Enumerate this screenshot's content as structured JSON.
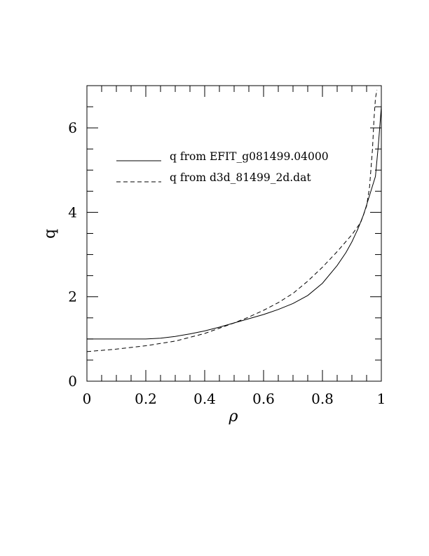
{
  "chart_data": {
    "type": "line",
    "xlabel": "ρ",
    "ylabel": "q",
    "xlim": [
      0,
      1
    ],
    "ylim": [
      0,
      7
    ],
    "x_ticks": [
      0,
      0.2,
      0.4,
      0.6,
      0.8,
      1
    ],
    "x_tick_labels": [
      "0",
      "0.2",
      "0.4",
      "0.6",
      "0.8",
      "1"
    ],
    "y_ticks": [
      0,
      2,
      4,
      6
    ],
    "y_tick_labels": [
      "0",
      "2",
      "4",
      "6"
    ],
    "grid": false,
    "legend_position": "upper-left",
    "series": [
      {
        "name": "q from EFIT_g081499.04000",
        "style": "solid",
        "x": [
          0,
          0.1,
          0.2,
          0.25,
          0.3,
          0.35,
          0.4,
          0.45,
          0.5,
          0.55,
          0.6,
          0.65,
          0.7,
          0.75,
          0.8,
          0.85,
          0.88,
          0.9,
          0.92,
          0.94,
          0.96,
          0.98,
          0.99,
          1.0
        ],
        "y": [
          1.0,
          1.0,
          1.0,
          1.02,
          1.06,
          1.12,
          1.19,
          1.28,
          1.38,
          1.48,
          1.58,
          1.7,
          1.84,
          2.03,
          2.32,
          2.74,
          3.05,
          3.3,
          3.6,
          3.95,
          4.4,
          4.85,
          5.6,
          6.5
        ]
      },
      {
        "name": "q from d3d_81499_2d.dat",
        "style": "dashed",
        "x": [
          0,
          0.1,
          0.2,
          0.3,
          0.4,
          0.5,
          0.55,
          0.6,
          0.65,
          0.7,
          0.75,
          0.8,
          0.85,
          0.9,
          0.93,
          0.95,
          0.96,
          0.97,
          0.975,
          0.98,
          0.985
        ],
        "y": [
          0.7,
          0.76,
          0.84,
          0.95,
          1.13,
          1.38,
          1.52,
          1.68,
          1.86,
          2.08,
          2.37,
          2.7,
          3.07,
          3.47,
          3.76,
          4.15,
          4.6,
          5.5,
          6.2,
          6.7,
          6.9
        ]
      }
    ]
  }
}
